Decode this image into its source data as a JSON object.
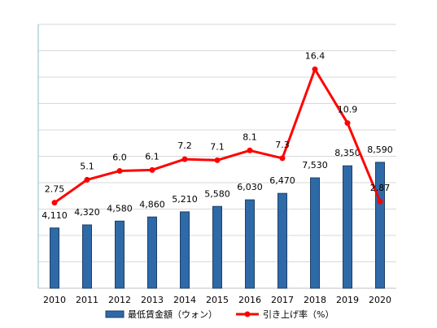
{
  "chart_data": {
    "type": "bar",
    "categories": [
      "2010",
      "2011",
      "2012",
      "2013",
      "2014",
      "2015",
      "2016",
      "2017",
      "2018",
      "2019",
      "2020"
    ],
    "series": [
      {
        "name": "最低賃金額（ウォン）",
        "type": "bar",
        "values": [
          4110,
          4320,
          4580,
          4860,
          5210,
          5580,
          6030,
          6470,
          7530,
          8350,
          8590
        ],
        "labels": [
          "4,110",
          "4,320",
          "4,580",
          "4,860",
          "5,210",
          "5,580",
          "6,030",
          "6,470",
          "7,530",
          "8,350",
          "8,590"
        ],
        "color": "#2e6aa8"
      },
      {
        "name": "引き上げ率（%）",
        "type": "line",
        "values": [
          2.75,
          5.1,
          6.0,
          6.1,
          7.2,
          7.1,
          8.1,
          7.3,
          16.4,
          10.9,
          2.87
        ],
        "labels": [
          "2.75",
          "5.1",
          "6.0",
          "6.1",
          "7.2",
          "7.1",
          "8.1",
          "7.3",
          "16.4",
          "10.9",
          "2.87"
        ],
        "color": "#ff0000"
      }
    ],
    "y_bar_range": [
      0,
      18000
    ],
    "y_line_range": [
      -6,
      21
    ],
    "grid": true,
    "legend_position": "bottom"
  }
}
